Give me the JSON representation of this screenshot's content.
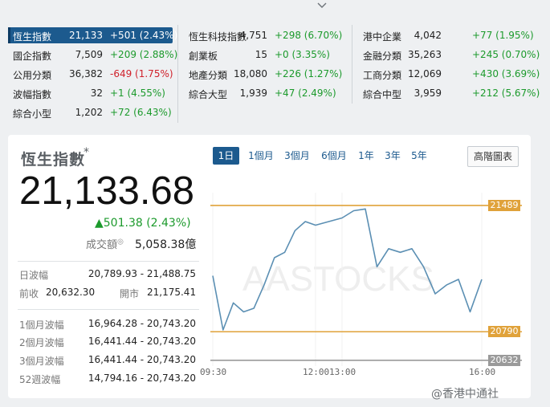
{
  "tickers": [
    {
      "name": "恆生指數",
      "price": "21,133",
      "change": "+501 (2.43%)",
      "dir": "up",
      "selected": true
    },
    {
      "name": "國企指數",
      "price": "7,509",
      "change": "+209 (2.88%)",
      "dir": "up"
    },
    {
      "name": "公用分類",
      "price": "36,382",
      "change": "-649 (1.75%)",
      "dir": "dn"
    },
    {
      "name": "波幅指數",
      "price": "32",
      "change": "+1 (4.55%)",
      "dir": "up"
    },
    {
      "name": "綜合小型",
      "price": "1,202",
      "change": "+72 (6.43%)",
      "dir": "up"
    },
    {
      "name": "恆生科技指數",
      "price": "4,751",
      "change": "+298 (6.70%)",
      "dir": "up"
    },
    {
      "name": "創業板",
      "price": "15",
      "change": "+0 (3.35%)",
      "dir": "up"
    },
    {
      "name": "地產分類",
      "price": "18,080",
      "change": "+226 (1.27%)",
      "dir": "up"
    },
    {
      "name": "綜合大型",
      "price": "1,939",
      "change": "+47 (2.49%)",
      "dir": "up"
    },
    {
      "name": "港中企業",
      "price": "4,042",
      "change": "+77 (1.95%)",
      "dir": "up"
    },
    {
      "name": "金融分類",
      "price": "35,263",
      "change": "+245 (0.70%)",
      "dir": "up"
    },
    {
      "name": "工商分類",
      "price": "12,069",
      "change": "+430 (3.69%)",
      "dir": "up"
    },
    {
      "name": "綜合中型",
      "price": "3,959",
      "change": "+212 (5.67%)",
      "dir": "up"
    }
  ],
  "index": {
    "title": "恆生指數",
    "star": "*",
    "value": "21,133.68",
    "change": "▲501.38 (2.43%)",
    "turnover_label": "成交額",
    "turnover_value": "5,058.38億"
  },
  "stats": [
    {
      "label": "日波幅",
      "value": "20,789.93 - 21,488.75"
    },
    {
      "label": "1個月波幅",
      "value": "16,964.28 - 20,743.20"
    },
    {
      "label": "2個月波幅",
      "value": "16,441.44 - 20,743.20"
    },
    {
      "label": "3個月波幅",
      "value": "16,441.44 - 20,743.20"
    },
    {
      "label": "52週波幅",
      "value": "14,794.16 - 20,743.20"
    }
  ],
  "prev_close": {
    "label": "前收",
    "value": "20,632.30"
  },
  "open": {
    "label": "開市",
    "value": "21,175.41"
  },
  "periods": [
    {
      "label": "1日",
      "active": true
    },
    {
      "label": "1個月"
    },
    {
      "label": "3個月"
    },
    {
      "label": "6個月"
    },
    {
      "label": "1年"
    },
    {
      "label": "3年"
    },
    {
      "label": "5年"
    }
  ],
  "advanced_chart": "高階圖表",
  "watermark_logo": "AASTOCKS",
  "page_watermark": "@香港中通社",
  "chart_data": {
    "type": "line",
    "x_ticks": [
      "09:30",
      "12:00",
      "13:00",
      "16:00"
    ],
    "x": [
      "09:30",
      "09:45",
      "10:00",
      "10:15",
      "10:30",
      "10:45",
      "11:00",
      "11:15",
      "11:30",
      "11:45",
      "12:00",
      "13:00",
      "13:15",
      "13:30",
      "13:45",
      "14:00",
      "14:15",
      "14:30",
      "14:45",
      "15:00",
      "15:15",
      "15:30",
      "15:45",
      "16:00"
    ],
    "series": [
      {
        "values": [
          21100,
          20800,
          20950,
          20900,
          20920,
          21050,
          21200,
          21230,
          21350,
          21400,
          21380,
          21420,
          21460,
          21470,
          21150,
          21250,
          21230,
          21250,
          21150,
          21000,
          21050,
          21080,
          20900,
          21080
        ]
      }
    ],
    "ylim": [
      20600,
      21560
    ],
    "reference_lines": [
      {
        "value": 21489,
        "label": "21489",
        "color": "#e0a23a"
      },
      {
        "value": 20790,
        "label": "20790",
        "color": "#e0a23a"
      },
      {
        "value": 20632,
        "label": "20632",
        "color": "#9a9a9a"
      }
    ],
    "line_color": "#5b8fb3"
  }
}
